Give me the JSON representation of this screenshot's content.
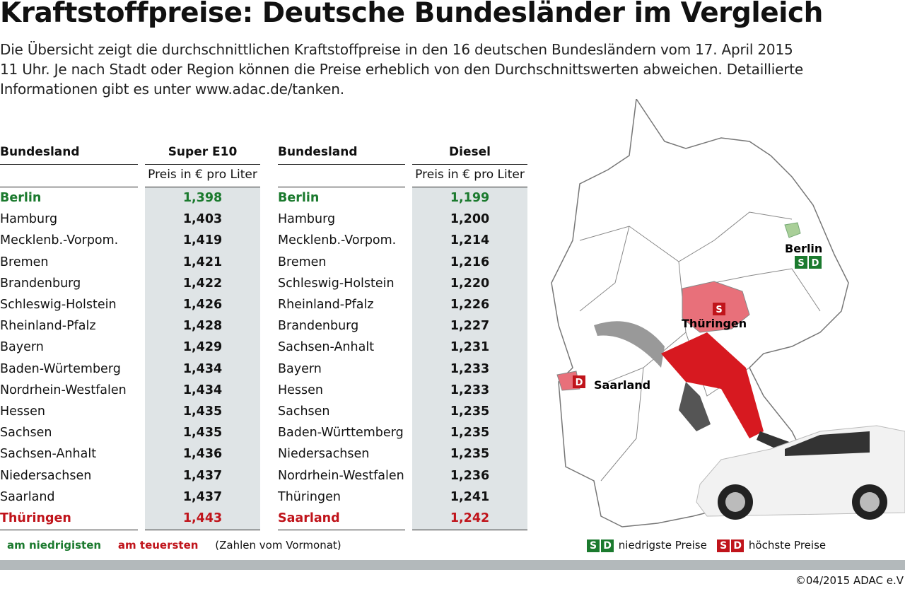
{
  "title": "Kraftstoffpreise: Deutsche Bundesländer im Vergleich",
  "description": [
    "Die Übersicht zeigt die durchschnittlichen Kraftstoffpreise in den 16 deutschen Bundesländern vom 17. April 2015",
    "11 Uhr. Je nach Stadt oder Region können die Preise erheblich von den Durchschnittswerten abweichen. Detaillierte",
    "Informationen gibt es unter www.adac.de/tanken."
  ],
  "colors": {
    "lowest": "#1b7a2e",
    "highest": "#c0141b",
    "value_bg": "#dfe4e6"
  },
  "chart_data": {
    "type": "table",
    "tables": [
      {
        "col_name": "Bundesland",
        "col_value": "Super E10",
        "unit": "Preis in € pro Liter",
        "rows": [
          [
            "Berlin",
            "1,398"
          ],
          [
            "Hamburg",
            "1,403"
          ],
          [
            "Mecklenb.-Vorpom.",
            "1,419"
          ],
          [
            "Bremen",
            "1,421"
          ],
          [
            "Brandenburg",
            "1,422"
          ],
          [
            "Schleswig-Holstein",
            "1,426"
          ],
          [
            "Rheinland-Pfalz",
            "1,428"
          ],
          [
            "Bayern",
            "1,429"
          ],
          [
            "Baden-Würtemberg",
            "1,434"
          ],
          [
            "Nordrhein-Westfalen",
            "1,434"
          ],
          [
            "Hessen",
            "1,435"
          ],
          [
            "Sachsen",
            "1,435"
          ],
          [
            "Sachsen-Anhalt",
            "1,436"
          ],
          [
            "Niedersachsen",
            "1,437"
          ],
          [
            "Saarland",
            "1,437"
          ],
          [
            "Thüringen",
            "1,443"
          ]
        ]
      },
      {
        "col_name": "Bundesland",
        "col_value": "Diesel",
        "unit": "Preis in € pro Liter",
        "rows": [
          [
            "Berlin",
            "1,199"
          ],
          [
            "Hamburg",
            "1,200"
          ],
          [
            "Mecklenb.-Vorpom.",
            "1,214"
          ],
          [
            "Bremen",
            "1,216"
          ],
          [
            "Schleswig-Holstein",
            "1,220"
          ],
          [
            "Rheinland-Pfalz",
            "1,226"
          ],
          [
            "Brandenburg",
            "1,227"
          ],
          [
            "Sachsen-Anhalt",
            "1,231"
          ],
          [
            "Bayern",
            "1,233"
          ],
          [
            "Hessen",
            "1,233"
          ],
          [
            "Sachsen",
            "1,235"
          ],
          [
            "Baden-Württemberg",
            "1,235"
          ],
          [
            "Niedersachsen",
            "1,235"
          ],
          [
            "Nordrhein-Westfalen",
            "1,236"
          ],
          [
            "Thüringen",
            "1,241"
          ],
          [
            "Saarland",
            "1,242"
          ]
        ]
      }
    ]
  },
  "map": {
    "berlin": "Berlin",
    "thueringen": "Thüringen",
    "saarland": "Saarland",
    "s": "S",
    "d": "D"
  },
  "legend": {
    "lowest": "am niedrigisten",
    "highest": "am teuersten",
    "note": "(Zahlen vom Vormonat)",
    "s": "S",
    "d": "D",
    "lowest_prices": "niedrigste Preise",
    "highest_prices": "höchste Preise"
  },
  "copyright": "©04/2015 ADAC e.V"
}
